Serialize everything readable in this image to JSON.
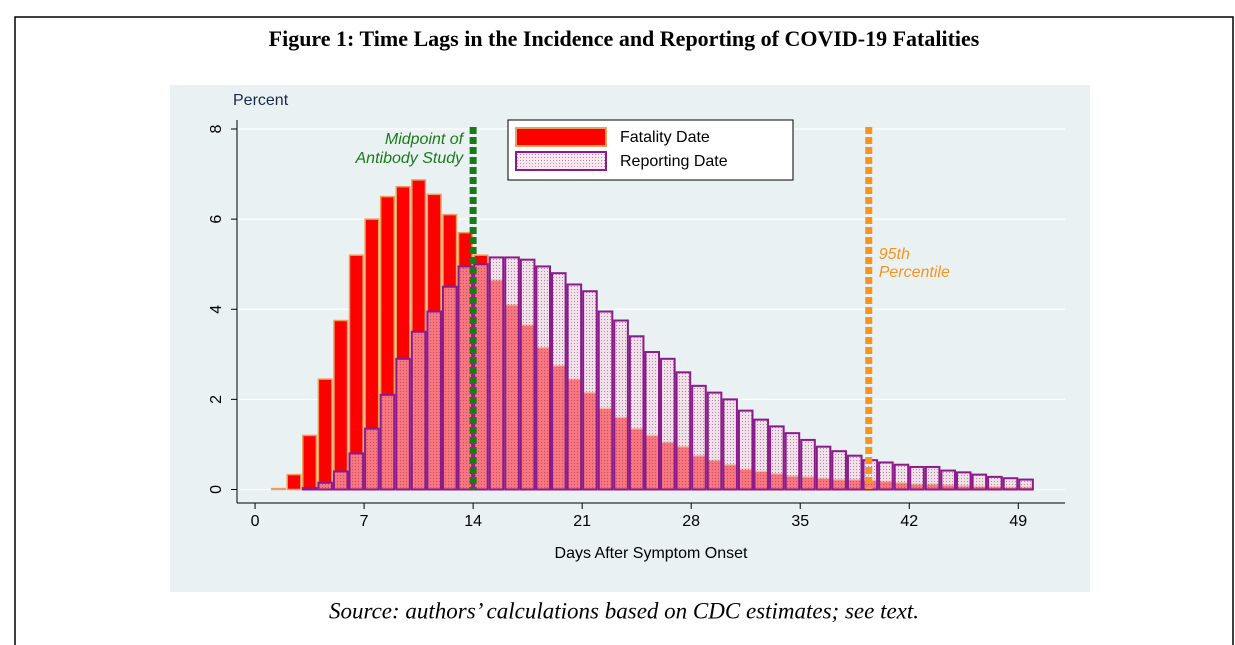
{
  "chart_data": {
    "type": "histogram",
    "title": "Figure 1: Time Lags in the Incidence and Reporting of COVID-19 Fatalities",
    "caption": "Source: authors’ calculations based on CDC estimates; see text.",
    "y_label": "Percent",
    "x_label": "Days After Symptom Onset",
    "bins": [
      0,
      1,
      2,
      3,
      4,
      5,
      6,
      7,
      8,
      9,
      10,
      11,
      12,
      13,
      14,
      15,
      16,
      17,
      18,
      19,
      20,
      21,
      22,
      23,
      24,
      25,
      26,
      27,
      28,
      29,
      30,
      31,
      32,
      33,
      34,
      35,
      36,
      37,
      38,
      39,
      40,
      41,
      42,
      43,
      44,
      45,
      46,
      47,
      48,
      49,
      50
    ],
    "series": [
      {
        "name": "Fatality Date",
        "color": "#ff0000",
        "edgecolor": "#e8a060",
        "values": [
          0,
          0.02,
          0.33,
          1.2,
          2.45,
          3.75,
          5.2,
          6.0,
          6.5,
          6.72,
          6.87,
          6.55,
          6.1,
          5.7,
          5.2,
          4.65,
          4.1,
          3.65,
          3.15,
          2.75,
          2.45,
          2.15,
          1.8,
          1.6,
          1.35,
          1.2,
          1.05,
          0.95,
          0.75,
          0.65,
          0.55,
          0.45,
          0.4,
          0.35,
          0.3,
          0.28,
          0.25,
          0.22,
          0.22,
          0.2,
          0.18,
          0.15,
          0.12,
          0.12,
          0.1,
          0.08,
          0.07,
          0.06,
          0.05,
          0.05
        ]
      },
      {
        "name": "Reporting Date",
        "color": "#f4c8d8",
        "edgecolor": "#8b1a8b",
        "values": [
          0,
          0,
          0,
          0.03,
          0.15,
          0.4,
          0.8,
          1.35,
          2.1,
          2.9,
          3.5,
          3.95,
          4.5,
          4.95,
          5.0,
          5.15,
          5.15,
          5.1,
          4.95,
          4.8,
          4.55,
          4.4,
          3.95,
          3.75,
          3.4,
          3.05,
          2.9,
          2.6,
          2.3,
          2.15,
          2.0,
          1.75,
          1.55,
          1.4,
          1.25,
          1.1,
          0.95,
          0.85,
          0.75,
          0.65,
          0.6,
          0.55,
          0.5,
          0.5,
          0.42,
          0.38,
          0.33,
          0.28,
          0.25,
          0.22
        ]
      }
    ],
    "annotations": [
      {
        "x": 14,
        "color": "#1a7a1a",
        "text": [
          "Midpoint of",
          "Antibody Study"
        ]
      },
      {
        "x": 39.4,
        "color": "#f7941d",
        "text": [
          "95th",
          "Percentile"
        ]
      }
    ],
    "xlim": [
      -1.16,
      52
    ],
    "ylim": [
      -0.3,
      8.2
    ],
    "xticks": [
      0,
      7,
      14,
      21,
      28,
      35,
      42,
      49
    ],
    "yticks": [
      0,
      2,
      4,
      6,
      8
    ],
    "grid": true,
    "legend": "top"
  }
}
